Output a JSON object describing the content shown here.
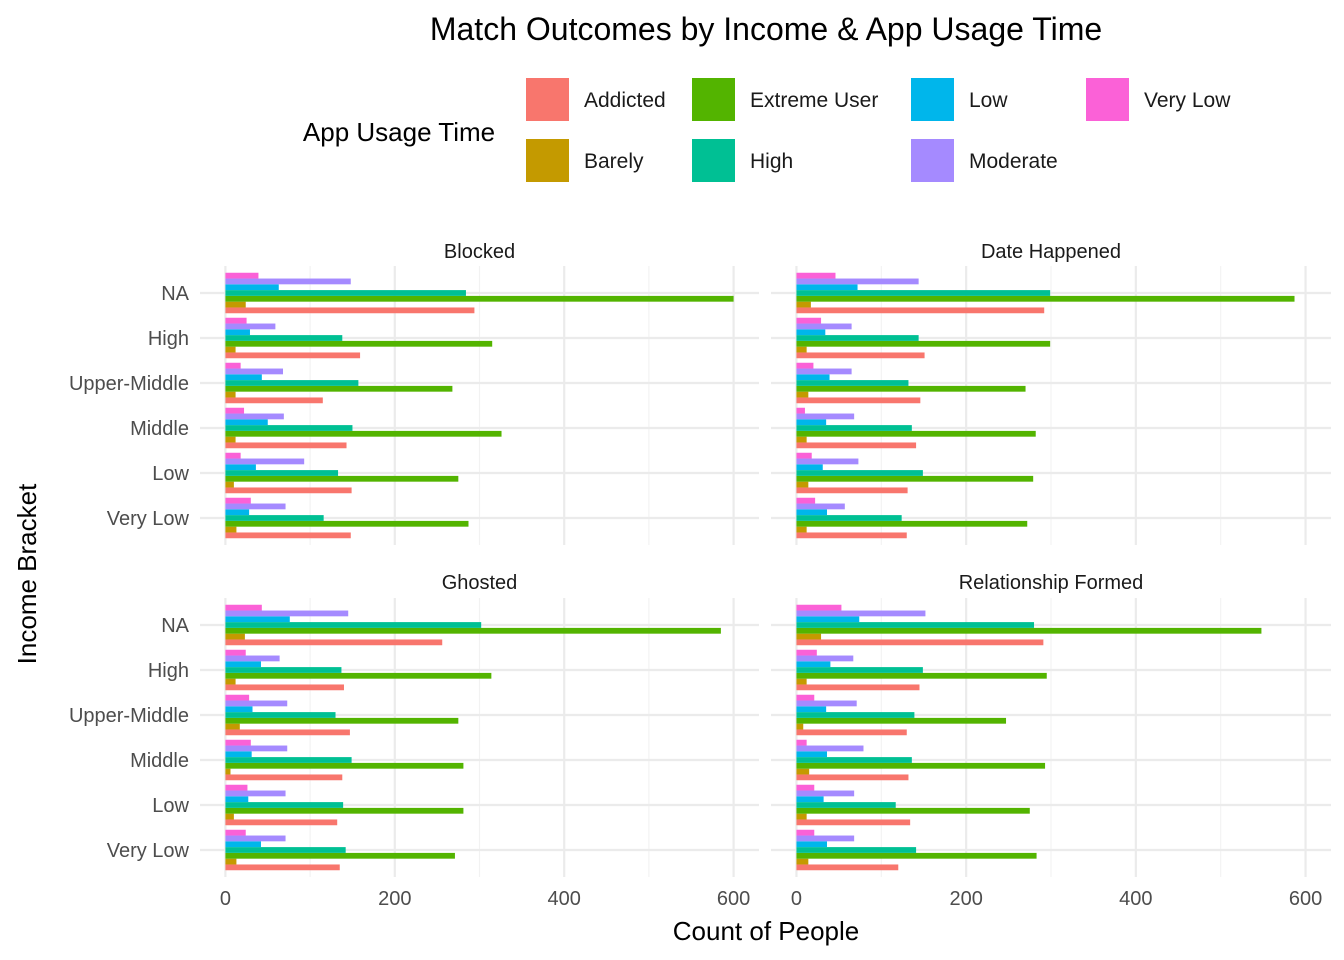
{
  "chart_data": {
    "type": "bar",
    "orientation": "horizontal",
    "title": "Match Outcomes by Income & App Usage Time",
    "xlabel": "Count of People",
    "ylabel": "Income Bracket",
    "xlim": [
      0,
      600
    ],
    "x_ticks": [
      0,
      200,
      400,
      600
    ],
    "grid": true,
    "legend_position": "top",
    "legend_title": "App Usage Time",
    "categories": [
      "Very Low",
      "Low",
      "Middle",
      "Upper-Middle",
      "High",
      "NA"
    ],
    "series_order": [
      "Addicted",
      "Barely",
      "Extreme User",
      "High",
      "Low",
      "Moderate",
      "Very Low"
    ],
    "series_colors": {
      "Addicted": "#F8766D",
      "Barely": "#C49A00",
      "Extreme User": "#53B400",
      "High": "#00C094",
      "Low": "#00B6EB",
      "Moderate": "#A58AFF",
      "Very Low": "#FB61D7"
    },
    "facets": [
      {
        "name": "Blocked",
        "values": {
          "Addicted": [
            148,
            149,
            143,
            115,
            159,
            294
          ],
          "Barely": [
            13,
            10,
            12,
            12,
            12,
            24
          ],
          "Extreme User": [
            287,
            275,
            326,
            268,
            315,
            600
          ],
          "High": [
            116,
            133,
            150,
            157,
            138,
            284
          ],
          "Low": [
            28,
            36,
            50,
            43,
            29,
            63
          ],
          "Moderate": [
            71,
            93,
            69,
            68,
            59,
            148
          ],
          "Very Low": [
            30,
            18,
            22,
            18,
            25,
            39
          ]
        }
      },
      {
        "name": "Date Happened",
        "values": {
          "Addicted": [
            130,
            131,
            141,
            146,
            151,
            292
          ],
          "Barely": [
            12,
            14,
            12,
            14,
            12,
            17
          ],
          "Extreme User": [
            272,
            279,
            282,
            270,
            299,
            587
          ],
          "High": [
            124,
            149,
            136,
            132,
            144,
            299
          ],
          "Low": [
            36,
            31,
            35,
            39,
            34,
            72
          ],
          "Moderate": [
            57,
            73,
            68,
            65,
            65,
            144
          ],
          "Very Low": [
            22,
            18,
            10,
            20,
            29,
            46
          ]
        }
      },
      {
        "name": "Ghosted",
        "values": {
          "Addicted": [
            135,
            132,
            138,
            147,
            140,
            256
          ],
          "Barely": [
            13,
            10,
            6,
            17,
            12,
            23
          ],
          "Extreme User": [
            271,
            281,
            281,
            275,
            314,
            585
          ],
          "High": [
            142,
            139,
            149,
            130,
            137,
            302
          ],
          "Low": [
            42,
            27,
            31,
            32,
            42,
            76
          ],
          "Moderate": [
            71,
            71,
            73,
            73,
            64,
            145
          ],
          "Very Low": [
            24,
            26,
            30,
            28,
            24,
            43
          ]
        }
      },
      {
        "name": "Relationship Formed",
        "values": {
          "Addicted": [
            120,
            134,
            132,
            130,
            145,
            291
          ],
          "Barely": [
            14,
            12,
            15,
            8,
            12,
            29
          ],
          "Extreme User": [
            283,
            275,
            293,
            247,
            295,
            548
          ],
          "High": [
            141,
            117,
            136,
            139,
            149,
            280
          ],
          "Low": [
            36,
            32,
            36,
            35,
            40,
            74
          ],
          "Moderate": [
            68,
            68,
            79,
            71,
            67,
            152
          ],
          "Very Low": [
            21,
            21,
            12,
            21,
            24,
            53
          ]
        }
      }
    ]
  }
}
